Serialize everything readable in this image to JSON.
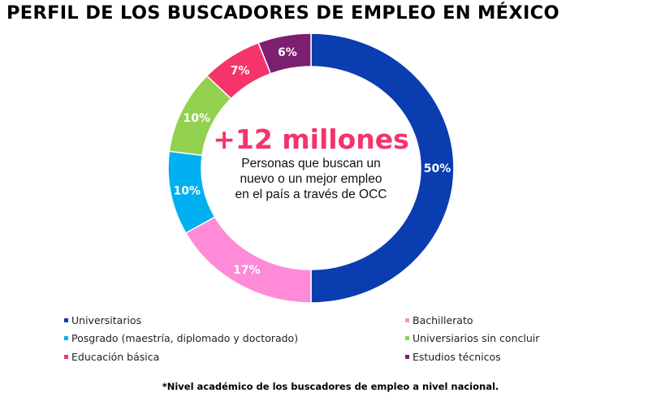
{
  "title": "PERFIL DE LOS BUSCADORES DE EMPLEO EN MÉXICO",
  "center": {
    "headline": "+12 millones",
    "subtitle": [
      "Personas que buscan un",
      "nuevo o un mejor empleo",
      "en el país a través de OCC"
    ]
  },
  "footnote": "*Nivel académico de los buscadores de empleo a nivel nacional.",
  "chart_data": {
    "type": "pie",
    "variant": "donut",
    "title": "PERFIL DE LOS BUSCADORES DE EMPLEO EN MÉXICO",
    "unit": "%",
    "legend_placement": "bottom",
    "slices": [
      {
        "label": "Universitarios",
        "value": 50,
        "display": "50%",
        "color": "#0A3DAF"
      },
      {
        "label": "Bachillerato",
        "value": 17,
        "display": "17%",
        "color": "#FF8AD8"
      },
      {
        "label": "Posgrado (maestría, diplomado y doctorado)",
        "value": 10,
        "display": "10%",
        "color": "#00B0F0"
      },
      {
        "label": "Universiarios sin concluir",
        "value": 10,
        "display": "10%",
        "color": "#92D050"
      },
      {
        "label": "Educación básica",
        "value": 7,
        "display": "7%",
        "color": "#F4346A"
      },
      {
        "label": "Estudios técnicos",
        "value": 6,
        "display": "6%",
        "color": "#7B1F6E"
      }
    ]
  }
}
